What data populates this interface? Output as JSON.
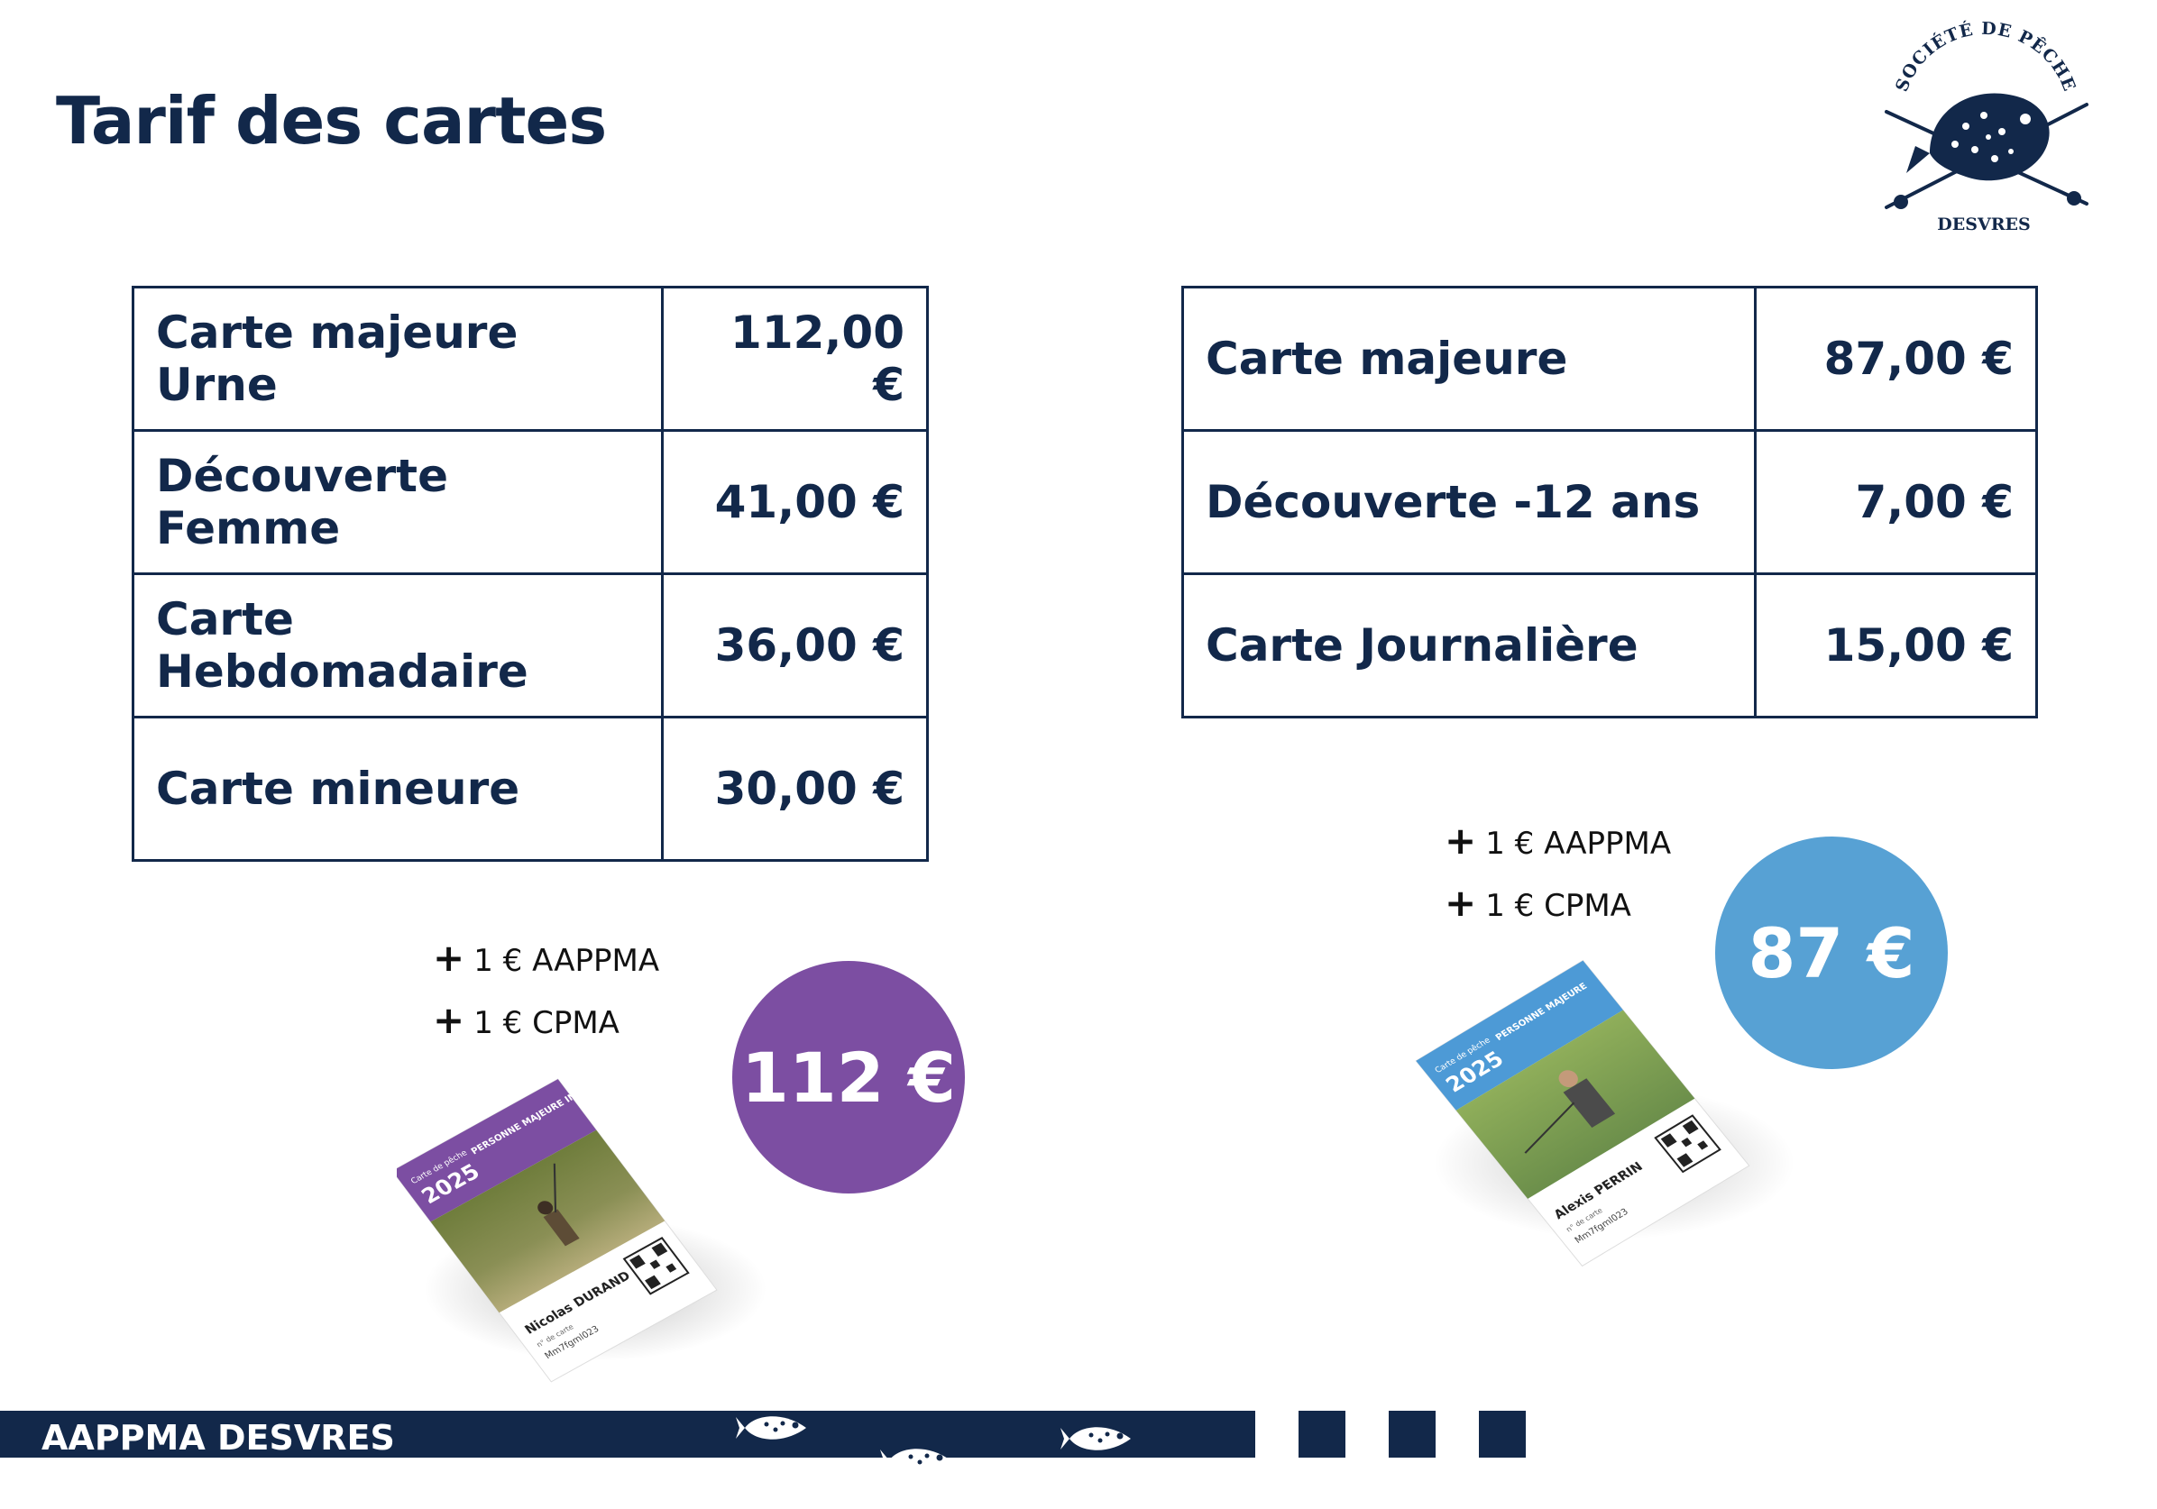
{
  "page": {
    "title": "Tarif des cartes"
  },
  "logo": {
    "arc_text": "SOCIÉTÉ DE PÊCHE",
    "bottom_text": "DESVRES",
    "icon": "trout-fishing-rods-logo"
  },
  "left_table": {
    "rows": [
      {
        "label": "Carte majeure Urne",
        "price": "112,00 €"
      },
      {
        "label": "Découverte Femme",
        "price": "41,00 €"
      },
      {
        "label": "Carte Hebdomadaire",
        "price": "36,00 €"
      },
      {
        "label": "Carte mineure",
        "price": "30,00 €"
      }
    ]
  },
  "right_table": {
    "rows": [
      {
        "label": "Carte majeure",
        "price": "87,00 €"
      },
      {
        "label": "Découverte -12 ans",
        "price": "7,00 €"
      },
      {
        "label": "Carte Journalière",
        "price": "15,00 €"
      }
    ]
  },
  "left_extras": {
    "plus": "+",
    "line1": "1 € AAPPMA",
    "line2": "1 € CPMA"
  },
  "right_extras": {
    "plus": "+",
    "line1": "1 € AAPPMA",
    "line2": "1 € CPMA"
  },
  "left_badge": {
    "price": "112 €",
    "color": "#7c4ea2"
  },
  "right_badge": {
    "price": "87 €",
    "color": "#57a1d4"
  },
  "left_card": {
    "small_label": "Carte de pêche",
    "year": "2025",
    "category": "PERSONNE MAJEURE INTERFÉDÉRALE",
    "holder": "Nicolas DURAND",
    "number_label": "n° de carte",
    "number": "Mm7fgml023",
    "accent": "#7c4ea2"
  },
  "right_card": {
    "small_label": "Carte de pêche",
    "year": "2025",
    "category": "PERSONNE MAJEURE",
    "holder": "Alexis PERRIN",
    "number_label": "n° de carte",
    "number": "Mm7fgml023",
    "accent": "#4d9ad6"
  },
  "footer": {
    "text": "AAPPMA DESVRES",
    "icon": "fish-icon"
  },
  "colors": {
    "navy": "#12284a"
  }
}
